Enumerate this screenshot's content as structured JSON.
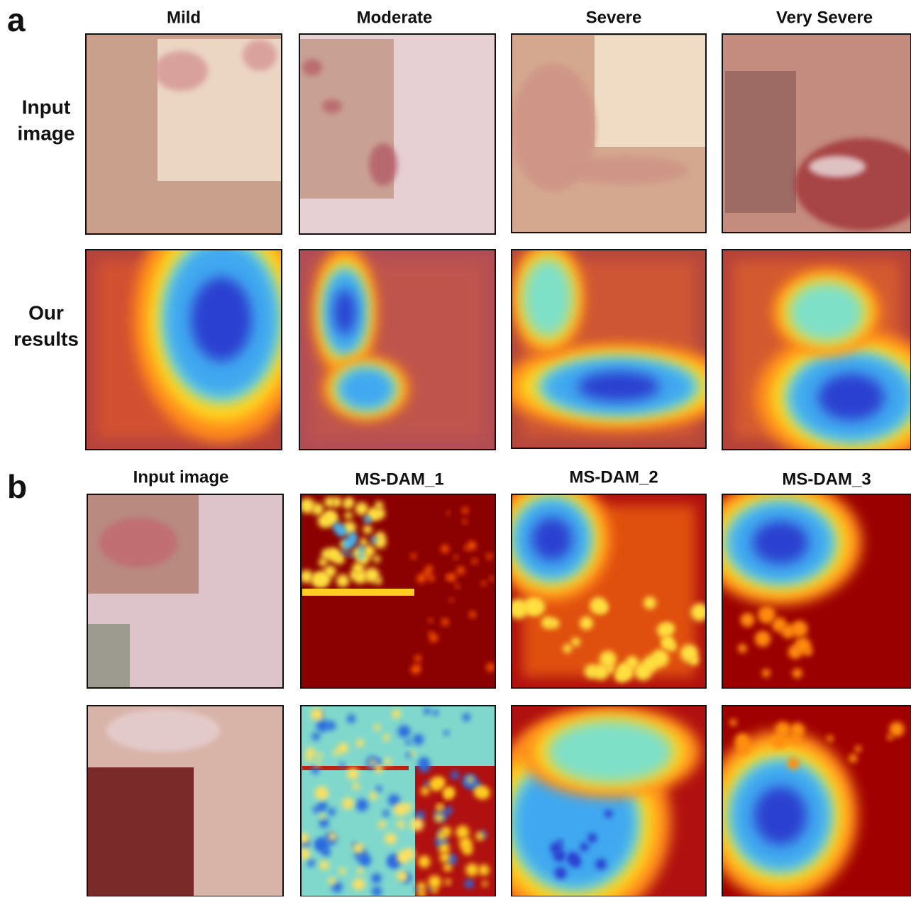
{
  "panel_a": {
    "label": "a",
    "columns": [
      "Mild",
      "Moderate",
      "Severe",
      "Very Severe"
    ],
    "rows": [
      [
        "Input",
        "image"
      ],
      [
        "Our",
        "results"
      ]
    ]
  },
  "panel_b": {
    "label": "b",
    "columns": [
      "Input image",
      "MS-DAM_1",
      "MS-DAM_2",
      "MS-DAM_3"
    ]
  }
}
